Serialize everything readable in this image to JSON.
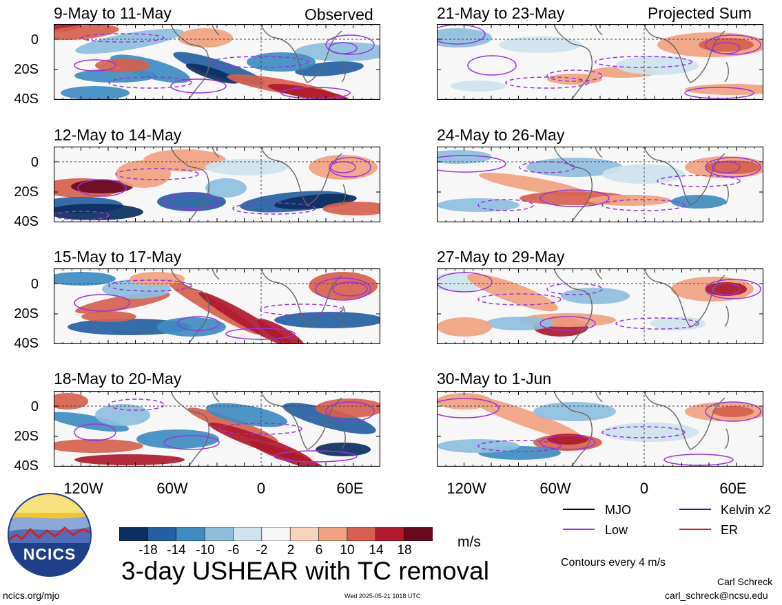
{
  "chart_data": {
    "type": "heatmap",
    "title": "3-day USHEAR with TC removal",
    "unit": "m/s",
    "colorbar": {
      "ticks": [
        "-18",
        "-14",
        "-10",
        "-6",
        "-2",
        "2",
        "6",
        "10",
        "14",
        "18"
      ],
      "colors": [
        "#0b2f5e",
        "#245fa3",
        "#3f8cc2",
        "#8dbfdd",
        "#cde3ee",
        "#f7f7f7",
        "#fbd2bc",
        "#f1a27f",
        "#d6604d",
        "#b0192b",
        "#6a0820"
      ]
    },
    "columns": [
      {
        "label": "Observed",
        "panels": [
          "9-May to 11-May",
          "12-May to 14-May",
          "15-May to 17-May",
          "18-May to 20-May"
        ]
      },
      {
        "label": "Projected Sum",
        "panels": [
          "21-May to 23-May",
          "24-May to 26-May",
          "27-May to 29-May",
          "30-May to 1-Jun"
        ]
      }
    ],
    "y_ticks": [
      "0",
      "20S",
      "40S"
    ],
    "x_ticks": [
      "120W",
      "60W",
      "0",
      "60E"
    ],
    "legend": [
      {
        "label": "MJO",
        "color": "#000000"
      },
      {
        "label": "Kelvin x2",
        "color": "#1a1ad6"
      },
      {
        "label": "Low",
        "color": "#9933dd"
      },
      {
        "label": "ER",
        "color": "#d62020"
      }
    ],
    "contour_note": "Contours every 4 m/s"
  },
  "footer": {
    "left_url": "ncics.org/mjo",
    "timestamp": "Wed 2025-05-21 1018 UTC",
    "author": "Carl Schreck",
    "email": "carl_schreck@ncsu.edu",
    "logo_text": "NCICS"
  }
}
